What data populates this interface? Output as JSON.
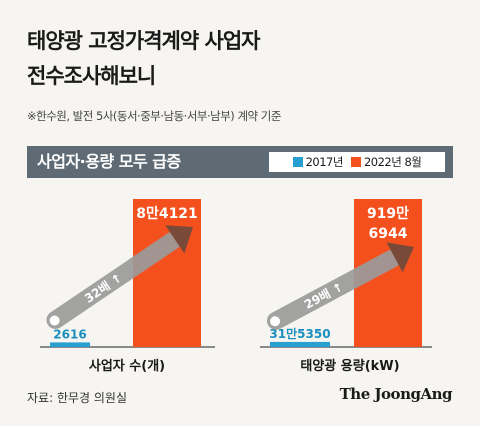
{
  "title": {
    "line1": "태양광 고정가격계약 사업자",
    "line2": "전수조사해보니"
  },
  "note": "※한수원, 발전 5사(동서·중부·남동·서부·남부) 계약 기준",
  "banner": {
    "title": "사업자·용량 모두 급증"
  },
  "colors": {
    "series_2017": "#27a0d1",
    "series_2022": "#f4501e",
    "banner": "#5e6b74",
    "baseline": "#666666",
    "arrow": "#9a9a9a"
  },
  "source": "자료: 한무경 의원실",
  "brand": "The JoongAng",
  "chart_data": [
    {
      "type": "bar",
      "xlabel": "사업자 수(개)",
      "series": [
        {
          "name": "2017년",
          "value": 2616,
          "label": "2616"
        },
        {
          "name": "2022년 8월",
          "value": 84121,
          "label": "8만4121"
        }
      ],
      "growth_label": "32배"
    },
    {
      "type": "bar",
      "xlabel": "태양광 용량(kW)",
      "series": [
        {
          "name": "2017년",
          "value": 315350,
          "label": "31만5350"
        },
        {
          "name": "2022년 8월",
          "value": 9196944,
          "label": "919만 6944"
        }
      ],
      "growth_label": "29배"
    }
  ]
}
